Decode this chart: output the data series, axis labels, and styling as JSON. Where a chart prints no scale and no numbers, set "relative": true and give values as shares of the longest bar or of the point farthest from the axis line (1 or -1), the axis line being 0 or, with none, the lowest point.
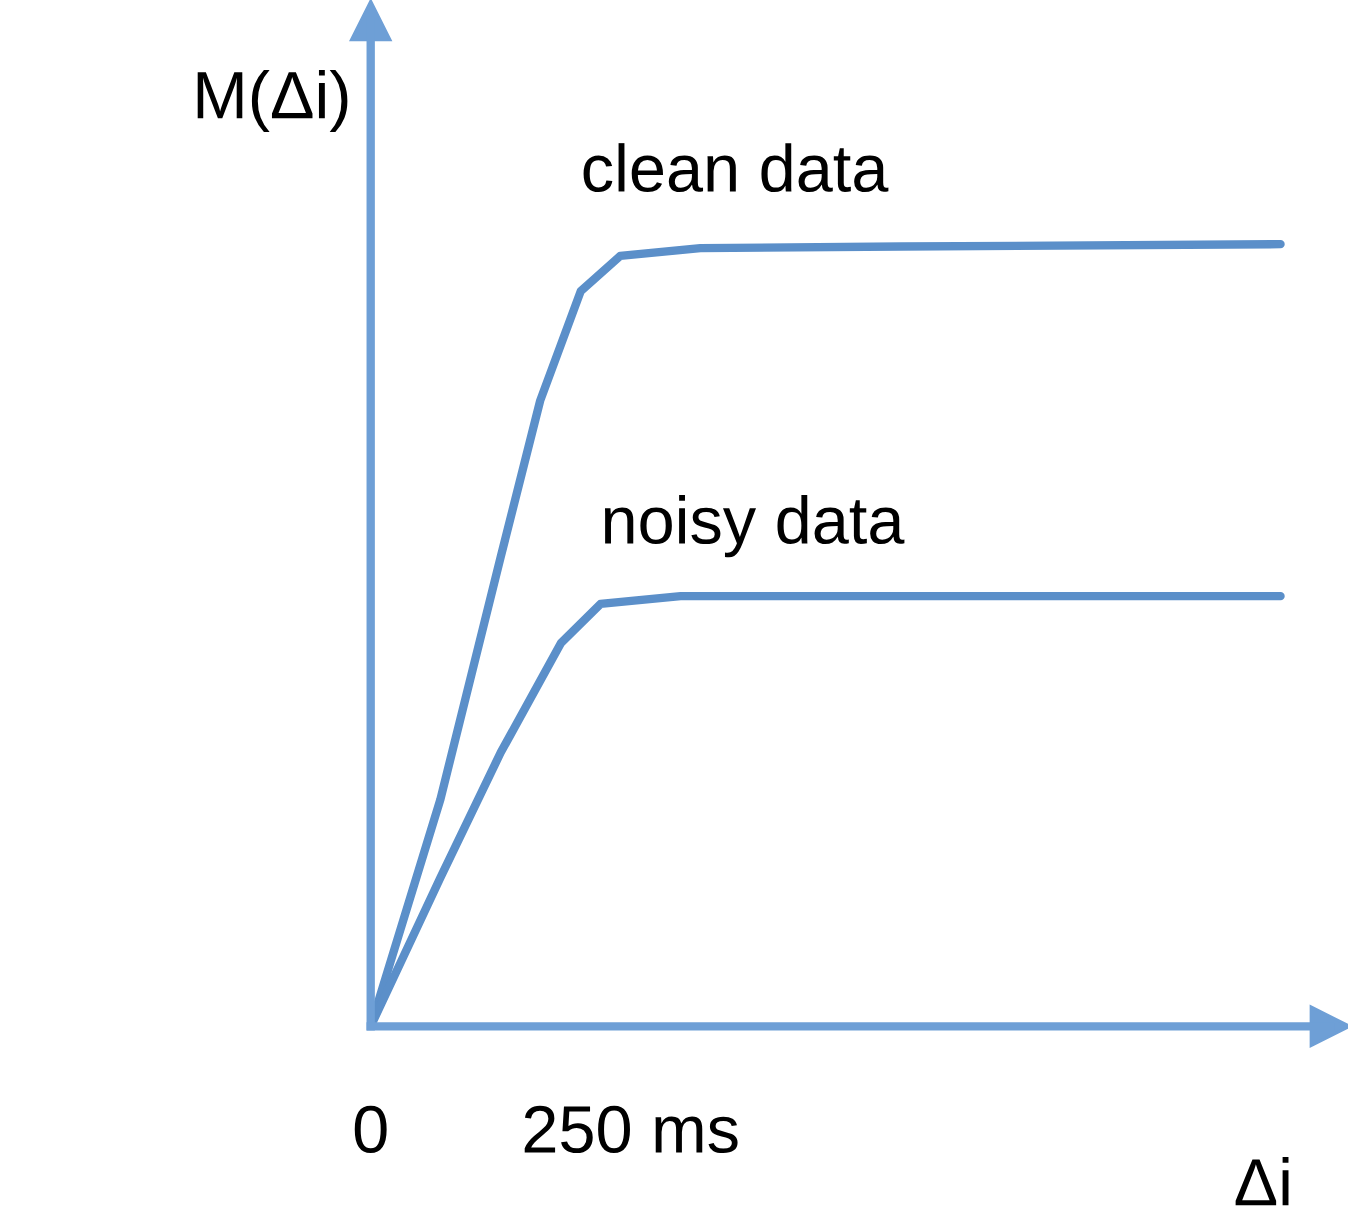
{
  "chart_data": {
    "type": "line",
    "xlabel": "Δi",
    "ylabel": "M(Δi)",
    "relative": true,
    "xlim": [
      0,
      923
    ],
    "xticks": [
      0,
      {
        "value": 250,
        "label": "250 ms"
      }
    ],
    "grid": false,
    "legend": false,
    "marker": "none",
    "line_style": "solid",
    "series": [
      {
        "name": "clean data",
        "color": "#5b8fc9",
        "x": [
          0,
          67,
          125,
          163,
          202,
          240,
          317,
          510,
          875
        ],
        "values": [
          0,
          0.29,
          0.6,
          0.8,
          0.94,
          0.985,
          0.995,
          0.997,
          1
        ]
      },
      {
        "name": "noisy data",
        "color": "#5b8fc9",
        "x": [
          0,
          67,
          125,
          183,
          221,
          298,
          548,
          875
        ],
        "values": [
          0,
          0.19,
          0.35,
          0.49,
          0.54,
          0.55,
          0.55,
          0.55
        ]
      }
    ]
  }
}
